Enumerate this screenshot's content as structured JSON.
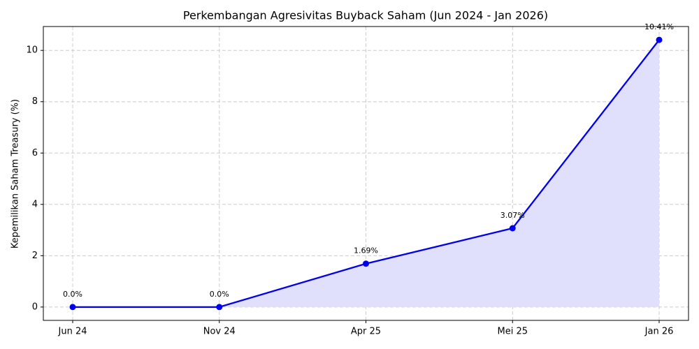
{
  "chart_data": {
    "type": "line",
    "title": "Perkembangan Agresivitas Buyback Saham (Jun 2024 - Jan 2026)",
    "y_label": "Kepemilikan Saham Treasury (%)",
    "categories": [
      "Jun 24",
      "Nov 24",
      "Apr 25",
      "Mei 25",
      "Jan 26"
    ],
    "series": [
      {
        "name": "Kepemilikan Saham Treasury",
        "color": "#0000ee",
        "fill": "#e0e0fc",
        "values": [
          0,
          0,
          1.69,
          3.07,
          10.41
        ],
        "value_labels": [
          "0.0%",
          "0.0%",
          "1.69%",
          "3.07%",
          "10.41%"
        ]
      }
    ],
    "ylim": [
      -0.52,
      10.93
    ],
    "yticks": [
      0,
      2,
      4,
      6,
      8,
      10
    ],
    "grid": true
  }
}
